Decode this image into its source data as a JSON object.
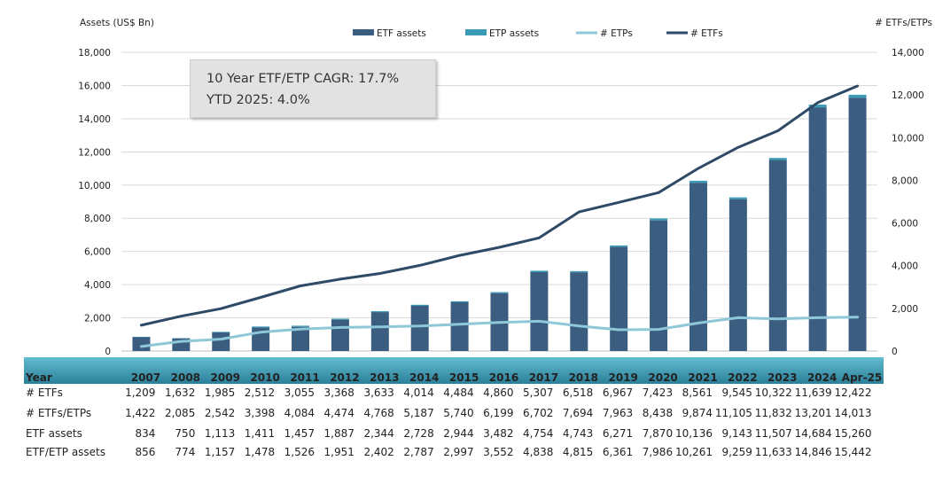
{
  "chart_data": {
    "type": "bar",
    "ylabel_left": "Assets (US$ Bn)",
    "ylabel_right": "# ETFs/ETPs",
    "ylim_left": [
      0,
      18000
    ],
    "ylim_right": [
      0,
      14000
    ],
    "left_ticks": [
      "0",
      "2,000",
      "4,000",
      "6,000",
      "8,000",
      "10,000",
      "12,000",
      "14,000",
      "16,000",
      "18,000"
    ],
    "right_ticks": [
      "0",
      "2,000",
      "4,000",
      "6,000",
      "8,000",
      "10,000",
      "12,000",
      "14,000"
    ],
    "legend": [
      {
        "name": "ETF assets",
        "kind": "bar",
        "color": "#3b5e80"
      },
      {
        "name": "ETP assets",
        "kind": "bar",
        "color": "#3a9bb6"
      },
      {
        "name": "# ETPs",
        "kind": "line",
        "color": "#8ec8d8"
      },
      {
        "name": "# ETFs",
        "kind": "line",
        "color": "#2e4a66"
      }
    ],
    "legend_position": "top",
    "categories": [
      "2007",
      "2008",
      "2009",
      "2010",
      "2011",
      "2012",
      "2013",
      "2014",
      "2015",
      "2016",
      "2017",
      "2018",
      "2019",
      "2020",
      "2021",
      "2022",
      "2023",
      "2024",
      "Apr-25"
    ],
    "series": [
      {
        "name": "ETF assets",
        "type": "bar",
        "axis": "left",
        "values": [
          834,
          750,
          1113,
          1411,
          1457,
          1887,
          2344,
          2728,
          2944,
          3482,
          4754,
          4743,
          6271,
          7870,
          10136,
          9143,
          11507,
          14684,
          15260
        ]
      },
      {
        "name": "ETP assets",
        "type": "bar-stack",
        "axis": "left",
        "total_values": [
          856,
          774,
          1157,
          1478,
          1526,
          1951,
          2402,
          2787,
          2997,
          3552,
          4838,
          4815,
          6361,
          7986,
          10261,
          9259,
          11633,
          14846,
          15442
        ]
      },
      {
        "name": "# ETFs",
        "type": "line",
        "axis": "right",
        "values": [
          1209,
          1632,
          1985,
          2512,
          3055,
          3368,
          3633,
          4014,
          4484,
          4860,
          5307,
          6518,
          6967,
          7423,
          8561,
          9545,
          10322,
          11639,
          12422
        ]
      },
      {
        "name": "# ETPs",
        "type": "line",
        "axis": "right",
        "values": [
          213,
          453,
          557,
          886,
          1029,
          1106,
          1135,
          1173,
          1256,
          1339,
          1395,
          1176,
          996,
          1015,
          1313,
          1560,
          1510,
          1562,
          1591
        ]
      }
    ],
    "annotation": {
      "line1": "10 Year ETF/ETP CAGR: 17.7%",
      "line2": "YTD 2025: 4.0%"
    },
    "table": {
      "header_label": "Year",
      "years": [
        "2007",
        "2008",
        "2009",
        "2010",
        "2011",
        "2012",
        "2013",
        "2014",
        "2015",
        "2016",
        "2017",
        "2018",
        "2019",
        "2020",
        "2021",
        "2022",
        "2023",
        "2024",
        "Apr-25"
      ],
      "rows": [
        {
          "label": "# ETFs",
          "values": [
            "1,209",
            "1,632",
            "1,985",
            "2,512",
            "3,055",
            "3,368",
            "3,633",
            "4,014",
            "4,484",
            "4,860",
            "5,307",
            "6,518",
            "6,967",
            "7,423",
            "8,561",
            "9,545",
            "10,322",
            "11,639",
            "12,422"
          ]
        },
        {
          "label": "# ETFs/ETPs",
          "values": [
            "1,422",
            "2,085",
            "2,542",
            "3,398",
            "4,084",
            "4,474",
            "4,768",
            "5,187",
            "5,740",
            "6,199",
            "6,702",
            "7,694",
            "7,963",
            "8,438",
            "9,874",
            "11,105",
            "11,832",
            "13,201",
            "14,013"
          ]
        },
        {
          "label": "ETF assets",
          "values": [
            "834",
            "750",
            "1,113",
            "1,411",
            "1,457",
            "1,887",
            "2,344",
            "2,728",
            "2,944",
            "3,482",
            "4,754",
            "4,743",
            "6,271",
            "7,870",
            "10,136",
            "9,143",
            "11,507",
            "14,684",
            "15,260"
          ]
        },
        {
          "label": "ETF/ETP assets",
          "values": [
            "856",
            "774",
            "1,157",
            "1,478",
            "1,526",
            "1,951",
            "2,402",
            "2,787",
            "2,997",
            "3,552",
            "4,838",
            "4,815",
            "6,361",
            "7,986",
            "10,261",
            "9,259",
            "11,633",
            "14,846",
            "15,442"
          ]
        }
      ]
    },
    "colors": {
      "etf_bar": "#3b5e80",
      "etp_bar": "#3a9bb6",
      "etfs_line": "#2e4a66",
      "etps_line": "#8ec8d8",
      "gridline": "#d9d9d9",
      "table_header_top": "#4fb0c6",
      "table_header_bottom": "#2f8aa3"
    }
  }
}
